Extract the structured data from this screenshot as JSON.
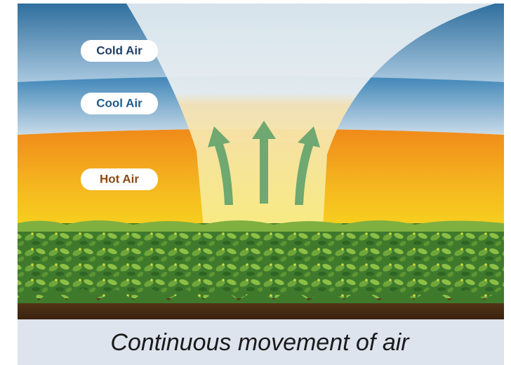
{
  "labels": {
    "cold": "Cold Air",
    "cool": "Cool Air",
    "hot": "Hot Air"
  },
  "caption": "Continuous movement of air"
}
